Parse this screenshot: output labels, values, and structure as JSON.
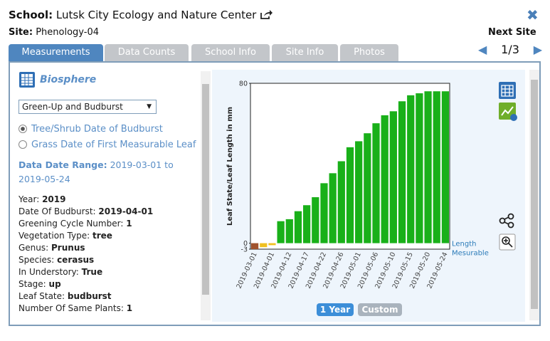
{
  "header": {
    "school_label": "School:",
    "school_name": "Lutsk City Ecology and Nature Center",
    "site_label": "Site:",
    "site_name": "Phenology-04",
    "next_site": "Next Site",
    "pager": "1/3"
  },
  "tabs": [
    "Measurements",
    "Data Counts",
    "School Info",
    "Site Info",
    "Photos"
  ],
  "panel": {
    "title": "Biosphere",
    "dropdown": "Green-Up and Budburst",
    "radios": [
      "Tree/Shrub Date of Budburst",
      "Grass Date of First Measurable Leaf"
    ],
    "date_range_label": "Data Date Range:",
    "date_range": "2019-03-01 to 2019-05-24",
    "fields": [
      {
        "label": "Year:",
        "value": "2019"
      },
      {
        "label": "Date Of Budburst:",
        "value": "2019-04-01"
      },
      {
        "label": "Greening Cycle Number:",
        "value": "1"
      },
      {
        "label": "Vegetation Type:",
        "value": "tree"
      },
      {
        "label": "Genus:",
        "value": "Prunus"
      },
      {
        "label": "Species:",
        "value": "cerasus"
      },
      {
        "label": "In Understory:",
        "value": "True"
      },
      {
        "label": "Stage:",
        "value": "up"
      },
      {
        "label": "Leaf State:",
        "value": "budburst"
      },
      {
        "label": "Number Of Same Plants:",
        "value": "1"
      }
    ]
  },
  "buttons": [
    "1 Year",
    "Custom"
  ],
  "chart_data": {
    "type": "bar",
    "y_label": "Leaf State/Leaf Length in mm",
    "categories": [
      "2019-03-01",
      null,
      "2019-04-01",
      null,
      "2019-04-12",
      null,
      "2019-04-17",
      null,
      "2019-04-22",
      null,
      "2019-04-26",
      null,
      "2019-05-01",
      null,
      "2019-05-06",
      null,
      "2019-05-10",
      null,
      "2019-05-15",
      null,
      "2019-05-20",
      null,
      "2019-05-24"
    ],
    "values": [
      -3,
      -2,
      -1,
      11,
      12,
      16,
      19,
      23,
      30,
      35,
      41,
      48,
      51,
      55,
      60,
      64,
      66,
      71,
      74,
      75,
      76,
      76,
      76
    ],
    "colors": [
      "#a0522d",
      "#f0c020",
      "#f0c020",
      "#19b019",
      "#19b019",
      "#19b019",
      "#19b019",
      "#19b019",
      "#19b019",
      "#19b019",
      "#19b019",
      "#19b019",
      "#19b019",
      "#19b019",
      "#19b019",
      "#19b019",
      "#19b019",
      "#19b019",
      "#19b019",
      "#19b019",
      "#19b019",
      "#19b019",
      "#19b019"
    ],
    "ylim": [
      -3,
      80
    ],
    "yticks": [
      -3,
      0,
      80
    ],
    "annotation": [
      "Length",
      "Mesurable"
    ]
  }
}
